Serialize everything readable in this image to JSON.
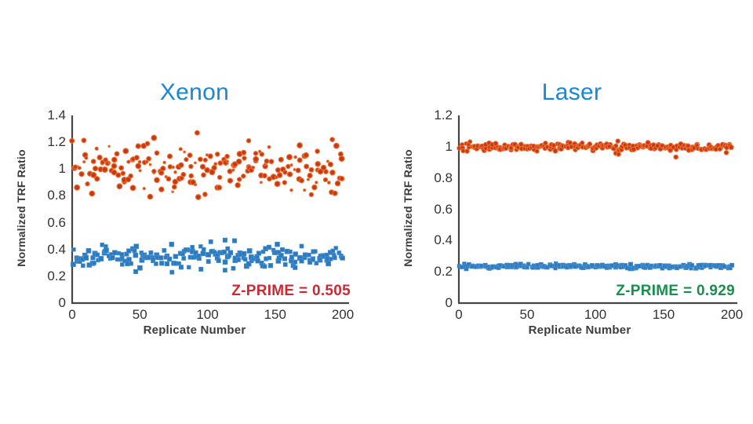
{
  "figure": {
    "background": "#ffffff"
  },
  "chart_data": [
    {
      "type": "scatter",
      "title": "Xenon",
      "title_color": "#1b86d1",
      "xlabel": "Replicate Number",
      "ylabel": "Normalized TRF Ratio",
      "xlim": [
        0,
        200
      ],
      "ylim": [
        0,
        1.4
      ],
      "xticks": [
        0,
        50,
        100,
        150,
        200
      ],
      "xtick_labels": [
        "0",
        "50",
        "100",
        "150",
        "200"
      ],
      "yticks": [
        0,
        0.2,
        0.4,
        0.6,
        0.8,
        1,
        1.2,
        1.4
      ],
      "ytick_labels": [
        "0",
        "0.2",
        "0.4",
        "0.6",
        "0.8",
        "1",
        "1.2",
        "1.4"
      ],
      "grid": false,
      "legend": "none",
      "annotation": {
        "text": "Z-PRIME = 0.505",
        "color": "#cc2a33"
      },
      "series": [
        {
          "name": "max-signal-xenon",
          "marker": "circle",
          "fill": "#c23a14",
          "edge": "#ed6c31",
          "n": 205,
          "x_start": 1,
          "x_end": 200,
          "x_jitter": 1.2,
          "y_mean": 1.0,
          "y_sd": 0.09,
          "y_min": 0.78,
          "y_max": 1.27,
          "radii": {
            "frac_small": 0.25,
            "small": [
              1.1,
              2.0
            ],
            "main": [
              2.5,
              3.4
            ]
          },
          "seed": 7,
          "outliers": []
        },
        {
          "name": "min-signal-xenon",
          "marker": "square",
          "fill": "#2b7abf",
          "edge": "#4b92cf",
          "n": 200,
          "x_start": 1,
          "x_end": 200,
          "x_jitter": 1.2,
          "y_mean": 0.345,
          "y_sd": 0.042,
          "y_min": 0.23,
          "y_max": 0.48,
          "radii": {
            "frac_small": 0,
            "small": [
              2.2,
              2.6
            ],
            "main": [
              2.3,
              3.1
            ]
          },
          "seed": 13,
          "outliers": [
            [
              47,
              0.235
            ],
            [
              113,
              0.47
            ],
            [
              120,
              0.465
            ]
          ]
        }
      ]
    },
    {
      "type": "scatter",
      "title": "Laser",
      "title_color": "#1b86d1",
      "xlabel": "Replicate Number",
      "ylabel": "Normalized TRF Ratio",
      "xlim": [
        0,
        200
      ],
      "ylim": [
        0,
        1.2
      ],
      "xticks": [
        0,
        50,
        100,
        150,
        200
      ],
      "xtick_labels": [
        "0",
        "50",
        "100",
        "150",
        "200"
      ],
      "yticks": [
        0,
        0.2,
        0.4,
        0.6,
        0.8,
        1,
        1.2
      ],
      "ytick_labels": [
        "0",
        "0.2",
        "0.4",
        "0.6",
        "0.8",
        "1",
        "1.2"
      ],
      "grid": false,
      "legend": "none",
      "annotation": {
        "text": "Z-PRIME = 0.929",
        "color": "#17904d"
      },
      "series": [
        {
          "name": "max-signal-laser",
          "marker": "circle",
          "fill": "#c23a14",
          "edge": "#ed6c31",
          "n": 205,
          "x_start": 1,
          "x_end": 200,
          "x_jitter": 1.0,
          "y_mean": 1.0,
          "y_sd": 0.013,
          "y_min": 0.955,
          "y_max": 1.045,
          "radii": {
            "frac_small": 0,
            "small": [
              2.4,
              2.8
            ],
            "main": [
              2.4,
              3.0
            ]
          },
          "seed": 101,
          "outliers": [
            [
              115,
              0.958
            ],
            [
              117,
              0.952
            ],
            [
              159,
              0.934
            ],
            [
              196,
              0.962
            ]
          ]
        },
        {
          "name": "min-signal-laser",
          "marker": "square",
          "fill": "#2b7abf",
          "edge": "#4b92cf",
          "n": 205,
          "x_start": 1,
          "x_end": 200,
          "x_jitter": 1.0,
          "y_mean": 0.236,
          "y_sd": 0.008,
          "y_min": 0.215,
          "y_max": 0.26,
          "radii": {
            "frac_small": 0,
            "small": [
              2.2,
              2.5
            ],
            "main": [
              2.2,
              2.7
            ]
          },
          "seed": 202,
          "outliers": []
        }
      ]
    }
  ]
}
